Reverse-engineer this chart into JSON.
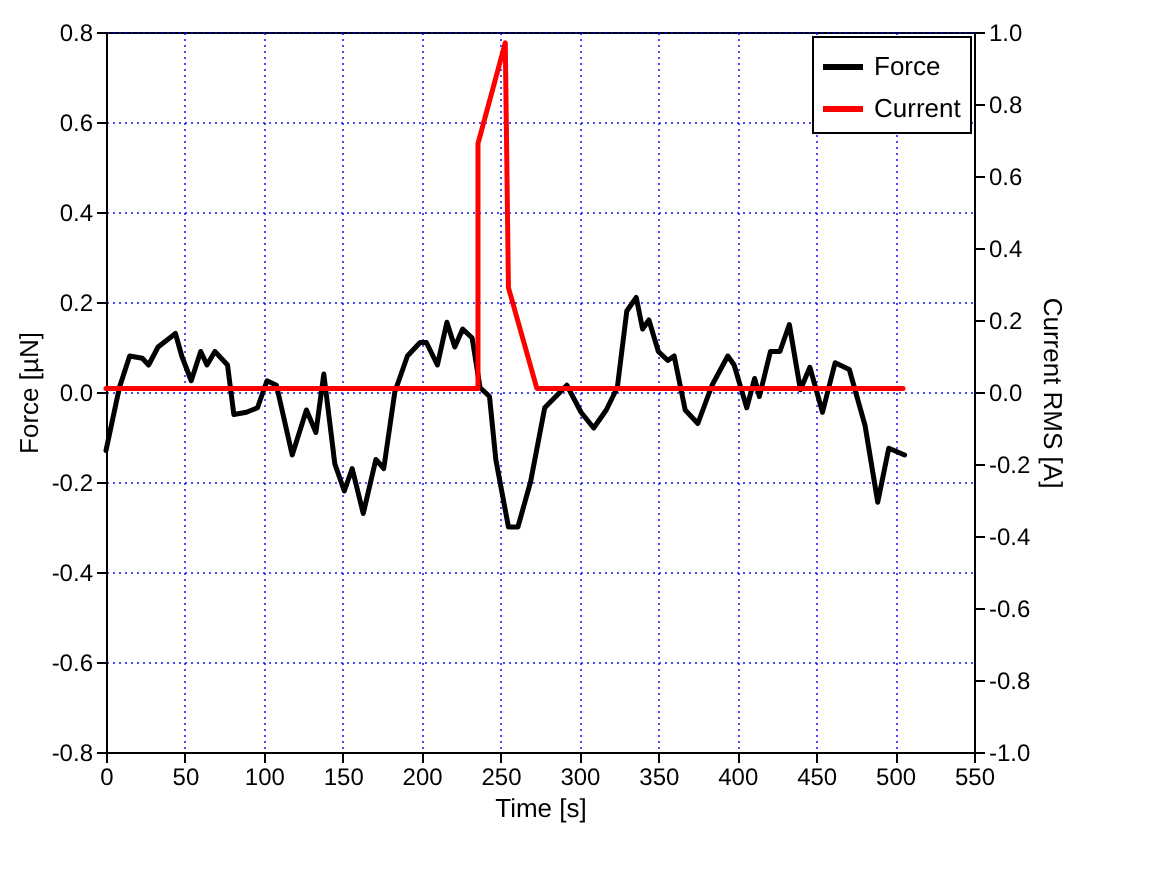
{
  "chart_data": {
    "type": "line",
    "xlabel": "Time [s]",
    "ylabel": "Force [µN]",
    "y2label": "Current RMS [A]",
    "xlim": [
      0,
      550
    ],
    "xticks": [
      0,
      50,
      100,
      150,
      200,
      250,
      300,
      350,
      400,
      450,
      500,
      550
    ],
    "ylim": [
      -0.8,
      0.8
    ],
    "yticks": [
      -0.8,
      -0.6,
      -0.4,
      -0.2,
      {
        "value": 0,
        "label": "0.0"
      },
      0.2,
      0.4,
      0.6,
      0.8
    ],
    "y2lim": [
      -1,
      1
    ],
    "y2ticks": [
      {
        "value": -1,
        "label": "-1.0"
      },
      -0.8,
      -0.6,
      -0.4,
      -0.2,
      {
        "value": 0,
        "label": "0.0"
      },
      0.2,
      0.4,
      0.6,
      0.8,
      {
        "value": 1,
        "label": "1.0"
      }
    ],
    "grid": true,
    "legend": "top right",
    "line_style": "solid",
    "marker": "none",
    "series": [
      {
        "name": "Force",
        "color": "#000000",
        "x": [
          0,
          8.5,
          15,
          23,
          27,
          33,
          44,
          48,
          54,
          60,
          64,
          69,
          77,
          81,
          89,
          96,
          102,
          108,
          118,
          127,
          133,
          138,
          145,
          151,
          156,
          163,
          171,
          176,
          183,
          191,
          199,
          203,
          210,
          216,
          221,
          226,
          232,
          237,
          243,
          247,
          255,
          261,
          269,
          278,
          292,
          301,
          309,
          317,
          324,
          330,
          336,
          340,
          344,
          350,
          356,
          360,
          367,
          375,
          384,
          394,
          398,
          406,
          411,
          414,
          421,
          427,
          433,
          440,
          446,
          454,
          462,
          471,
          481,
          489,
          496,
          506
        ],
        "values": [
          -0.13,
          0.01,
          0.08,
          0.075,
          0.06,
          0.1,
          0.13,
          0.08,
          0.025,
          0.09,
          0.06,
          0.09,
          0.06,
          -0.05,
          -0.045,
          -0.035,
          0.025,
          0.015,
          -0.14,
          -0.04,
          -0.09,
          0.04,
          -0.16,
          -0.22,
          -0.17,
          -0.27,
          -0.15,
          -0.17,
          0,
          0.08,
          0.11,
          0.11,
          0.06,
          0.155,
          0.1,
          0.14,
          0.12,
          0.01,
          -0.01,
          -0.15,
          -0.3,
          -0.3,
          -0.2,
          -0.035,
          0.015,
          -0.045,
          -0.08,
          -0.04,
          0.01,
          0.18,
          0.21,
          0.14,
          0.16,
          0.09,
          0.07,
          0.08,
          -0.04,
          -0.07,
          0.015,
          0.08,
          0.06,
          -0.035,
          0.03,
          -0.01,
          0.09,
          0.09,
          0.15,
          0.005,
          0.055,
          -0.045,
          0.065,
          0.05,
          -0.075,
          -0.245,
          -0.125,
          -0.14
        ]
      },
      {
        "name": "Current",
        "color": "#ff0000",
        "axis": "y2",
        "x": [
          0,
          235.7,
          235.7,
          253,
          255,
          273,
          505
        ],
        "values": [
          0.01,
          0.01,
          0.69,
          0.97,
          0.29,
          0.01,
          0.01
        ]
      }
    ]
  }
}
